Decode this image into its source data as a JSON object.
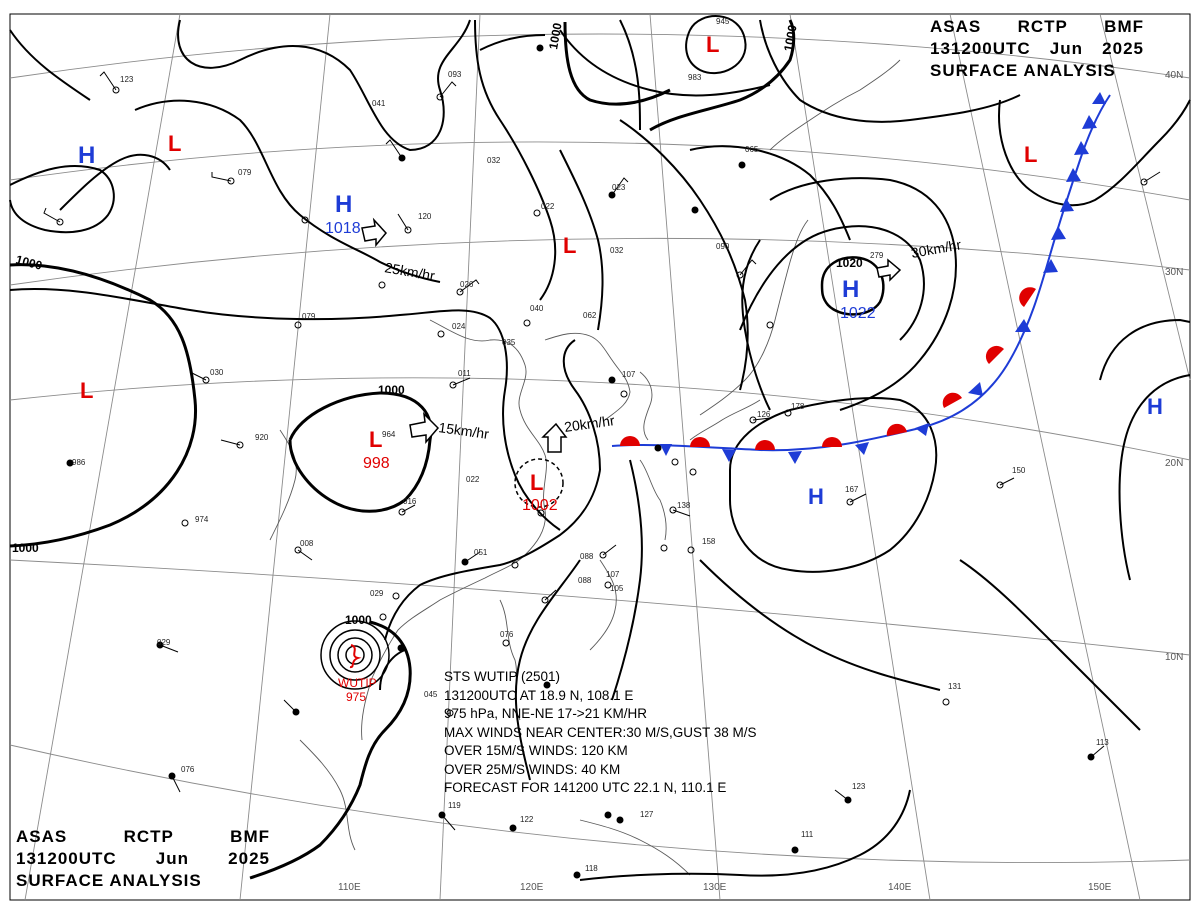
{
  "header_top_right": {
    "line1": [
      "ASAS",
      "RCTP",
      "BMF"
    ],
    "line2": [
      "131200UTC",
      "Jun",
      "2025"
    ],
    "line3": "SURFACE ANALYSIS"
  },
  "header_bottom_left": {
    "line1": [
      "ASAS",
      "RCTP",
      "BMF"
    ],
    "line2": [
      "131200UTC",
      "Jun",
      "2025"
    ],
    "line3": "SURFACE ANALYSIS"
  },
  "storm_info": {
    "line1": "STS WUTIP (2501)",
    "line2": "131200UTC AT 18.9 N, 108.1 E",
    "line3": "975 hPa, NNE-NE 17->21 KM/HR",
    "line4": "MAX WINDS NEAR CENTER:30 M/S,GUST 38 M/S",
    "line5": "OVER 15M/S WINDS: 120 KM",
    "line6": "OVER 25M/S WINDS: 40 KM",
    "line7": "FORECAST FOR 141200 UTC 22.1 N, 110.1 E"
  },
  "pressure_systems": [
    {
      "type": "H",
      "value": ""
    },
    {
      "type": "L",
      "value": ""
    },
    {
      "type": "H",
      "value": "1018"
    },
    {
      "type": "L",
      "value": ""
    },
    {
      "type": "L",
      "value": ""
    },
    {
      "type": "L",
      "value": "998"
    },
    {
      "type": "L",
      "value": "1002"
    },
    {
      "type": "L",
      "value": ""
    },
    {
      "type": "L",
      "value": ""
    },
    {
      "type": "H",
      "value": "1022"
    },
    {
      "type": "H",
      "value": ""
    },
    {
      "type": "H",
      "value": ""
    },
    {
      "type": "TC",
      "name": "WUTIP",
      "value": "975"
    }
  ],
  "isobar_labels": [
    "1000",
    "1000",
    "1000",
    "1000",
    "1000",
    "1000",
    "1020"
  ],
  "motion_labels": [
    "25km/hr",
    "15km/hr",
    "20km/hr",
    "30km/hr"
  ],
  "latitude_labels": [
    "40N",
    "30N",
    "20N",
    "10N"
  ],
  "longitude_labels": [
    "110E",
    "120E",
    "130E",
    "140E",
    "150E"
  ],
  "station_codes": [
    "123",
    "093",
    "041",
    "079",
    "032",
    "023",
    "022",
    "032",
    "065",
    "945",
    "983",
    "120",
    "026",
    "024",
    "079",
    "040",
    "062",
    "035",
    "030",
    "920",
    "964",
    "011",
    "107",
    "126",
    "088",
    "178",
    "150",
    "167",
    "138",
    "158",
    "974",
    "008",
    "051",
    "088",
    "107",
    "105",
    "029",
    "076",
    "045",
    "119",
    "076",
    "122",
    "127",
    "118",
    "123",
    "131",
    "113",
    "111",
    "022",
    "016",
    "986",
    "029",
    "090",
    "279"
  ],
  "colors": {
    "low": "#e00000",
    "high": "#1e3cd6",
    "warm_front": "#e00000",
    "cold_front": "#1e3cd6",
    "isobar": "#000000",
    "grid": "#888888",
    "coast": "#555555"
  }
}
